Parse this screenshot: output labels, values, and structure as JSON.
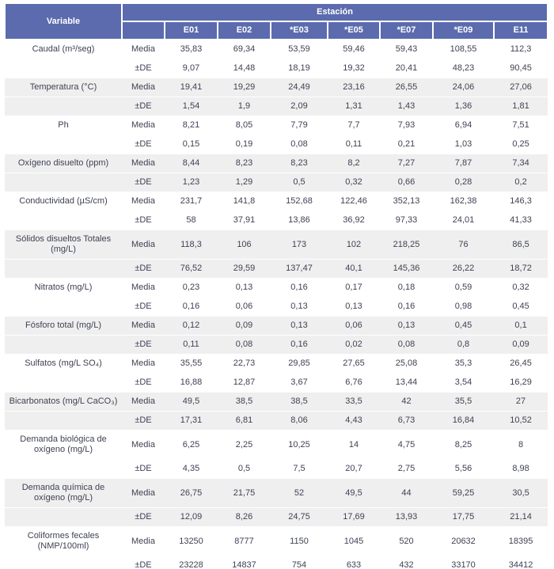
{
  "chart_data": {
    "type": "table",
    "corner_header": "Variable",
    "group_header": "Estación",
    "stations": [
      "E01",
      "E02",
      "*E03",
      "*E05",
      "*E07",
      "*E09",
      "E11"
    ],
    "stat_labels": [
      "Media",
      "±DE"
    ],
    "rows": [
      {
        "variable": "Caudal (m³/seg)",
        "media": [
          "35,83",
          "69,34",
          "53,59",
          "59,46",
          "59,43",
          "108,55",
          "112,3"
        ],
        "de": [
          "9,07",
          "14,48",
          "18,19",
          "19,32",
          "20,41",
          "48,23",
          "90,45"
        ]
      },
      {
        "variable": "Temperatura (°C)",
        "media": [
          "19,41",
          "19,29",
          "24,49",
          "23,16",
          "26,55",
          "24,06",
          "27,06"
        ],
        "de": [
          "1,54",
          "1,9",
          "2,09",
          "1,31",
          "1,43",
          "1,36",
          "1,81"
        ]
      },
      {
        "variable": "Ph",
        "media": [
          "8,21",
          "8,05",
          "7,79",
          "7,7",
          "7,93",
          "6,94",
          "7,51"
        ],
        "de": [
          "0,15",
          "0,19",
          "0,08",
          "0,11",
          "0,21",
          "1,03",
          "0,25"
        ]
      },
      {
        "variable": "Oxígeno disuelto (ppm)",
        "media": [
          "8,44",
          "8,23",
          "8,23",
          "8,2",
          "7,27",
          "7,87",
          "7,34"
        ],
        "de": [
          "1,23",
          "1,29",
          "0,5",
          "0,32",
          "0,66",
          "0,28",
          "0,2"
        ]
      },
      {
        "variable": "Conductividad (µS/cm)",
        "media": [
          "231,7",
          "141,8",
          "152,68",
          "122,46",
          "352,13",
          "162,38",
          "146,3"
        ],
        "de": [
          "58",
          "37,91",
          "13,86",
          "36,92",
          "97,33",
          "24,01",
          "41,33"
        ]
      },
      {
        "variable": "Sólidos disueltos Totales (mg/L)",
        "media": [
          "118,3",
          "106",
          "173",
          "102",
          "218,25",
          "76",
          "86,5"
        ],
        "de": [
          "76,52",
          "29,59",
          "137,47",
          "40,1",
          "145,36",
          "26,22",
          "18,72"
        ]
      },
      {
        "variable": "Nitratos (mg/L)",
        "media": [
          "0,23",
          "0,13",
          "0,16",
          "0,17",
          "0,18",
          "0,59",
          "0,32"
        ],
        "de": [
          "0,16",
          "0,06",
          "0,13",
          "0,13",
          "0,16",
          "0,98",
          "0,45"
        ]
      },
      {
        "variable": "Fósforo total (mg/L)",
        "media": [
          "0,12",
          "0,09",
          "0,13",
          "0,06",
          "0,13",
          "0,45",
          "0,1"
        ],
        "de": [
          "0,11",
          "0,08",
          "0,16",
          "0,02",
          "0,08",
          "0,8",
          "0,09"
        ]
      },
      {
        "variable": "Sulfatos (mg/L SO₄)",
        "media": [
          "35,55",
          "22,73",
          "29,85",
          "27,65",
          "25,08",
          "35,3",
          "26,45"
        ],
        "de": [
          "16,88",
          "12,87",
          "3,67",
          "6,76",
          "13,44",
          "3,54",
          "16,29"
        ]
      },
      {
        "variable": "Bicarbonatos (mg/L CaCO₃)",
        "media": [
          "49,5",
          "38,5",
          "38,5",
          "33,5",
          "42",
          "35,5",
          "27"
        ],
        "de": [
          "17,31",
          "6,81",
          "8,06",
          "4,43",
          "6,73",
          "16,84",
          "10,52"
        ]
      },
      {
        "variable": "Demanda biológica de oxígeno (mg/L)",
        "media": [
          "6,25",
          "2,25",
          "10,25",
          "14",
          "4,75",
          "8,25",
          "8"
        ],
        "de": [
          "4,35",
          "0,5",
          "7,5",
          "20,7",
          "2,75",
          "5,56",
          "8,98"
        ]
      },
      {
        "variable": "Demanda química de oxígeno (mg/L)",
        "media": [
          "26,75",
          "21,75",
          "52",
          "49,5",
          "44",
          "59,25",
          "30,5"
        ],
        "de": [
          "12,09",
          "8,26",
          "24,75",
          "17,69",
          "13,93",
          "17,75",
          "21,14"
        ]
      },
      {
        "variable": "Coliformes fecales (NMP/100ml)",
        "media": [
          "13250",
          "8777",
          "1150",
          "1045",
          "520",
          "20632",
          "18395"
        ],
        "de": [
          "23228",
          "14837",
          "754",
          "633",
          "432",
          "33170",
          "34412"
        ]
      }
    ]
  },
  "style": {
    "header_bg": "#5b6bae",
    "header_text": "#ffffff",
    "band_bg": "#efefef",
    "body_text": "#3f4254",
    "bottom_border": "#39404f"
  }
}
